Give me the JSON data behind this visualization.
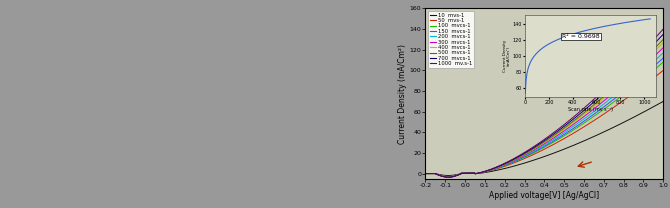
{
  "xlabel": "Applied voltage[V] [Ag/AgCl]",
  "ylabel": "Current Density (mA/Cm²)",
  "xlim": [
    -0.2,
    1.0
  ],
  "ylim": [
    -5,
    160
  ],
  "yticks": [
    0,
    20,
    40,
    60,
    80,
    100,
    120,
    140,
    160
  ],
  "xticks": [
    -0.2,
    -0.1,
    0.0,
    0.1,
    0.2,
    0.3,
    0.4,
    0.5,
    0.6,
    0.7,
    0.8,
    0.9,
    1.0
  ],
  "xtick_labels": [
    "-0.2",
    "-0.1",
    "0.0",
    "0.1",
    "0.2",
    "0.3",
    "0.4",
    "0.5",
    "0.6",
    "0.7",
    "0.8",
    "0.9",
    "1.0"
  ],
  "scan_rates": [
    10,
    50,
    100,
    150,
    200,
    300,
    400,
    500,
    700,
    1000
  ],
  "colors": [
    "#111111",
    "#cc2200",
    "#22bb00",
    "#3355ff",
    "#00bbcc",
    "#cc00cc",
    "#bbbb00",
    "#666600",
    "#000077",
    "#660066"
  ],
  "legend_labels": [
    "10  mvs-1",
    "50  mvs-1",
    "100  mvcs-1",
    "150  mvcs-1",
    "200  mvcs-1",
    "300  mvcs-1",
    "400  mvcs-1",
    "500  mvcs-1",
    "700  mvcs-1",
    "1000  mv.s-1"
  ],
  "inset_text": "R² = 0.9698",
  "bg_gray": "#aaaaaa",
  "plot_bg": "#ccccbb",
  "inset_bg": "#ddddcc",
  "arrow_color": "#aa3300",
  "left_panel_color": "#888888"
}
